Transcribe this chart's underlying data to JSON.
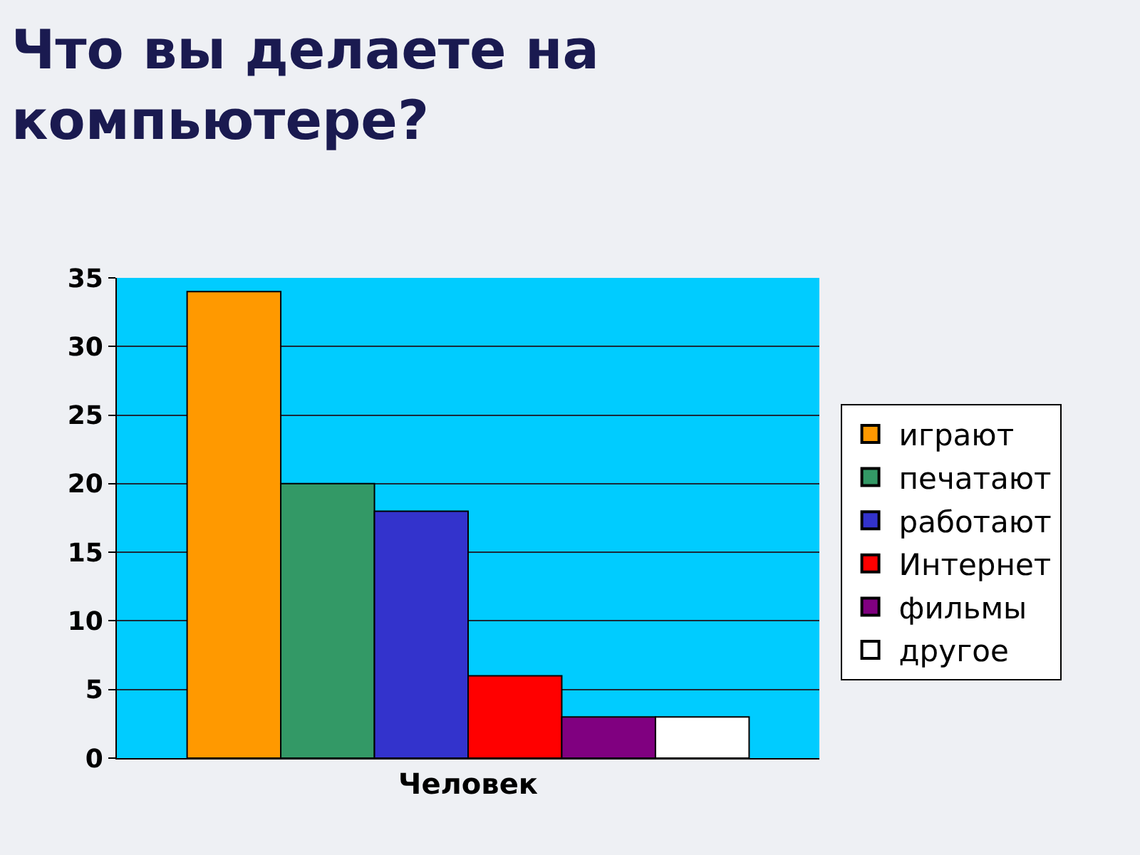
{
  "chart_data": {
    "type": "bar",
    "title": "Что вы делаете на\nкомпьютере?",
    "categories": [
      "Человек"
    ],
    "series": [
      {
        "name": "играют",
        "color": "#ff9900",
        "values": [
          34
        ]
      },
      {
        "name": "печатают",
        "color": "#339966",
        "values": [
          20
        ]
      },
      {
        "name": "работают",
        "color": "#3333cc",
        "values": [
          18
        ]
      },
      {
        "name": "Интернет",
        "color": "#ff0000",
        "values": [
          6
        ]
      },
      {
        "name": "фильмы",
        "color": "#800080",
        "values": [
          3
        ]
      },
      {
        "name": "другое",
        "color": "#ffffff",
        "values": [
          3
        ]
      }
    ],
    "ylim": [
      0,
      35
    ],
    "yticks": [
      0,
      5,
      10,
      15,
      20,
      25,
      30,
      35
    ],
    "grid": "y",
    "legend": "right"
  }
}
